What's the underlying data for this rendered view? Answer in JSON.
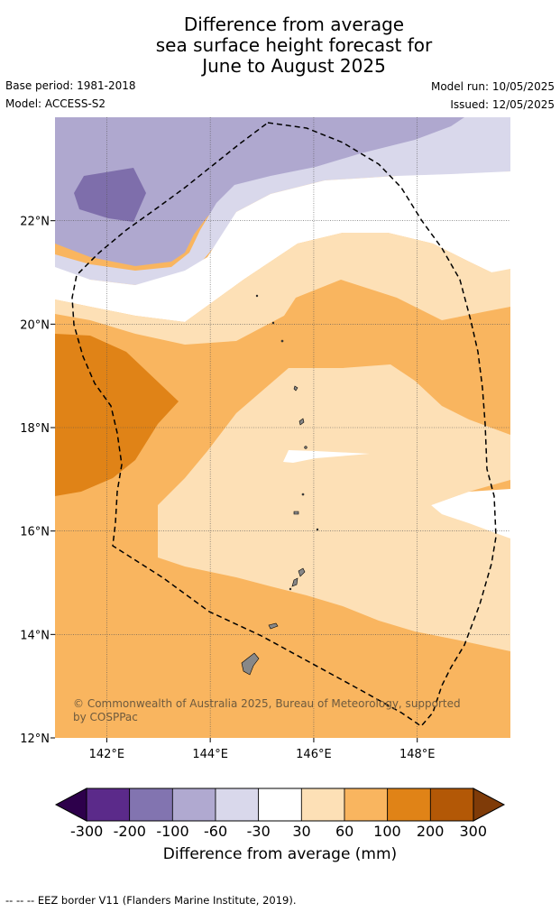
{
  "title": {
    "line1": "Difference from average",
    "line2": "sea surface height forecast for",
    "line3": "June to August 2025"
  },
  "info": {
    "base_period": "Base period: 1981-2018",
    "model": "Model: ACCESS-S2",
    "model_run": "Model run: 10/05/2025",
    "issued": "Issued: 12/05/2025"
  },
  "map": {
    "lon_range": [
      141,
      149.8
    ],
    "lat_range": [
      12,
      24
    ],
    "lon_ticks": [
      "142°E",
      "144°E",
      "146°E",
      "148°E"
    ],
    "lat_ticks": [
      "12°N",
      "14°N",
      "16°N",
      "18°N",
      "20°N",
      "22°N"
    ],
    "copyright_line1": "© Commonwealth of Australia 2025, Bureau of Meteorology, supported",
    "copyright_line2": "by COSPPac",
    "colors": {
      "dark_purple": "#7e6eab",
      "mid_purple": "#afa8cf",
      "light_purple": "#d9d8eb",
      "white": "#ffffff",
      "light_orange": "#fde0b6",
      "orange": "#f9b55f",
      "dark_orange": "#e08317",
      "land": "#888888",
      "eez_border": "#000000"
    }
  },
  "colorbar": {
    "labels": [
      "-300",
      "-200",
      "-100",
      "-60",
      "-30",
      "30",
      "60",
      "100",
      "200",
      "300"
    ],
    "colors": [
      "#5b2a8a",
      "#8274b0",
      "#b0a9d0",
      "#d9d8eb",
      "#ffffff",
      "#fde0b6",
      "#f9b55f",
      "#e08317",
      "#b35806"
    ],
    "extend_low_color": "#2d004b",
    "extend_high_color": "#7f3b08",
    "title": "Difference from average (mm)"
  },
  "footnote": "--  --  -- EEZ border V11 (Flanders Marine Institute, 2019)."
}
